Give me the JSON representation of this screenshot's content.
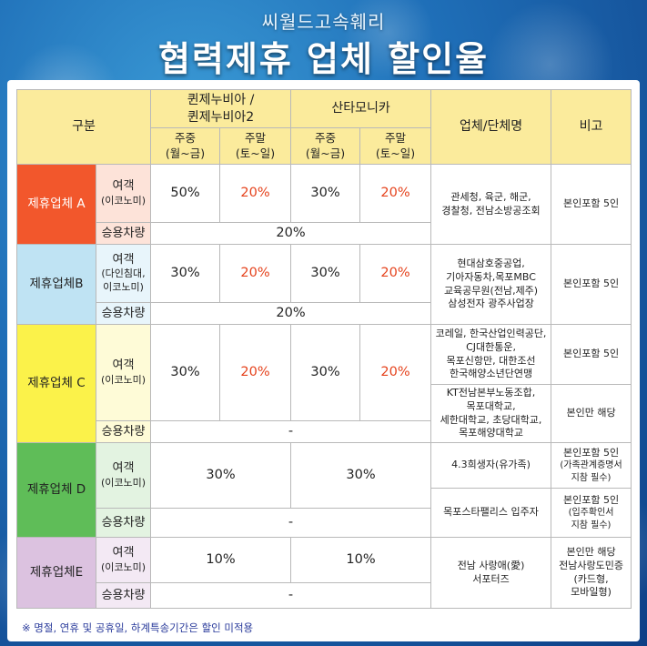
{
  "header": {
    "subtitle": "씨월드고속훼리",
    "title": "협력제휴 업체 할인율"
  },
  "table": {
    "headers": {
      "category": "구분",
      "group1": "퀸제누비아 /\n퀸제누비아2",
      "group2": "산타모니카",
      "org": "업체/단체명",
      "note": "비고",
      "weekday": "주중\n(월~금)",
      "weekend": "주말\n(토~일)"
    },
    "row_a": {
      "name": "제휴업체 A",
      "pax_label": "여객",
      "pax_sub": "(이코노미)",
      "r1": "50%",
      "r2": "20%",
      "r3": "30%",
      "r4": "20%",
      "car_label": "승용차량",
      "car_rate": "20%",
      "org": "관세청, 육군, 해군,\n경찰청, 전남소방공조회",
      "note": "본인포함 5인"
    },
    "row_b": {
      "name": "제휴업체B",
      "pax_label": "여객",
      "pax_sub": "(다인침대,\n이코노미)",
      "r1": "30%",
      "r2": "20%",
      "r3": "30%",
      "r4": "20%",
      "car_label": "승용차량",
      "car_rate": "20%",
      "org": "현대삼호중공업,\n기아자동차,목포MBC\n교육공무원(전남,제주)\n삼성전자 광주사업장",
      "note": "본인포함 5인"
    },
    "row_c": {
      "name": "제휴업체 C",
      "pax_label": "여객",
      "pax_sub": "(이코노미)",
      "r1": "30%",
      "r2": "20%",
      "r3": "30%",
      "r4": "20%",
      "car_label": "승용차량",
      "car_rate": "-",
      "org1": "코레일, 한국산업인력공단,\nCJ대한통운,\n목포신항만, 대한조선\n한국해양소년단연맹",
      "note1": "본인포함 5인",
      "org2": "KT전남본부노동조합,\n목포대학교,\n세한대학교, 초당대학교,\n목포해양대학교",
      "note2": "본인만 해당"
    },
    "row_d": {
      "name": "제휴업체 D",
      "pax_label": "여객",
      "pax_sub": "(이코노미)",
      "r12": "30%",
      "r34": "30%",
      "car_label": "승용차량",
      "car_rate": "-",
      "org1": "4.3희생자(유가족)",
      "note1_main": "본인포함 5인",
      "note1_sub": "(가족관계증명서\n지참 필수)",
      "org2": "목포스타팰리스 입주자",
      "note2_main": "본인포함 5인",
      "note2_sub": "(입주확인서\n지참 필수)"
    },
    "row_e": {
      "name": "제휴업체E",
      "pax_label": "여객",
      "pax_sub": "(이코노미)",
      "r12": "10%",
      "r34": "10%",
      "car_label": "승용차량",
      "car_rate": "-",
      "org": "전남 사랑애(愛)\n서포터즈",
      "note": "본인만 해당\n전남사랑도민증\n(카드형,\n모바일형)"
    }
  },
  "footnote": "※ 명절, 연휴 및 공휴일, 하계특송기간은 할인 미적용",
  "colors": {
    "header_fill": "#fbeb9c",
    "cat_a": "#f2572c",
    "cat_b": "#bfe3f3",
    "cat_c": "#fbf24a",
    "cat_d": "#5fbd58",
    "cat_e": "#dcc2e0",
    "rate_red": "#e5421c"
  }
}
